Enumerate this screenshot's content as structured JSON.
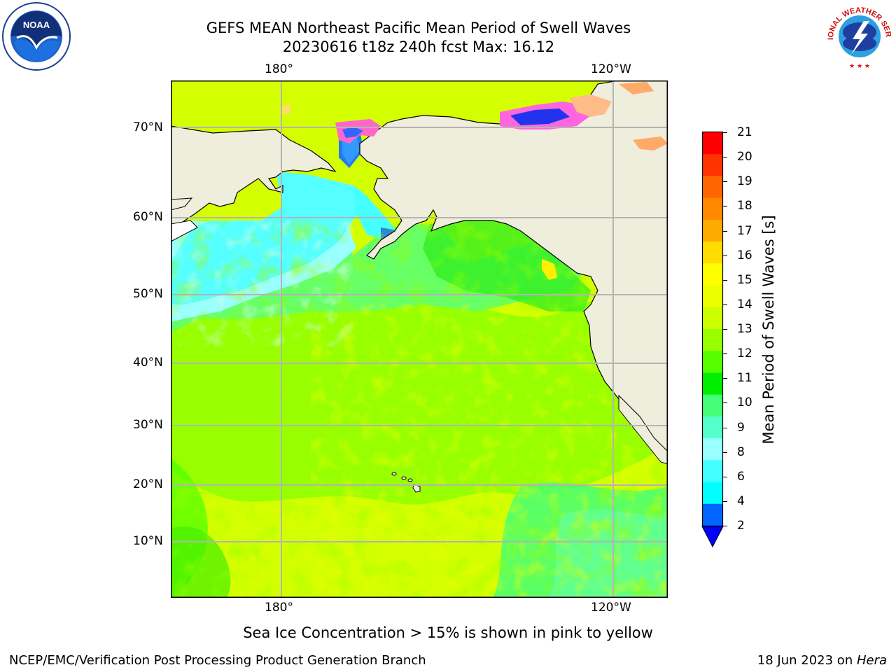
{
  "header": {
    "title_line1": "GEFS MEAN Northeast Pacific Mean Period of Swell Waves",
    "title_line2": "20230616 t18z 240h fcst   Max: 16.12"
  },
  "logos": {
    "noaa_text": "NOAA",
    "noaa_ring_text": "NATIONAL OCEANIC AND ATMOSPHERIC ADMINISTRATION · U.S. DEPARTMENT OF COMMERCE",
    "nws_ring_text": "NATIONAL WEATHER SERVICE"
  },
  "map": {
    "lon_labels_top": [
      "180°",
      "120°W"
    ],
    "lon_labels_bottom": [
      "180°",
      "120°W"
    ],
    "lat_labels": [
      "70°N",
      "60°N",
      "50°N",
      "40°N",
      "30°N",
      "20°N",
      "10°N"
    ],
    "land_color": "#efeddc",
    "grid_color": "#b4b4b4"
  },
  "colorbar": {
    "label": "Mean Period of Swell Waves [s]",
    "ticks": [
      "21",
      "20",
      "19",
      "18",
      "17",
      "16",
      "15",
      "14",
      "13",
      "12",
      "11",
      "10",
      "9",
      "8",
      "6",
      "4",
      "2"
    ],
    "colors_top_to_bottom": [
      "#ff0000",
      "#ff3300",
      "#ff6600",
      "#ff8800",
      "#ffaa00",
      "#ffdd00",
      "#ffff00",
      "#eeff00",
      "#ccff00",
      "#99ff00",
      "#55ff00",
      "#00ee00",
      "#44ff77",
      "#55ffcc",
      "#99ffff",
      "#44ffff",
      "#00ffff",
      "#0066ff"
    ],
    "extend_color": "#0000ff"
  },
  "notes": {
    "ice_note": "Sea Ice Concentration > 15% is shown in pink to yellow"
  },
  "footer": {
    "left": "NCEP/EMC/Verification Post Processing Product Generation Branch",
    "right_date": "18 Jun 2023 on ",
    "right_host": "Hera"
  }
}
